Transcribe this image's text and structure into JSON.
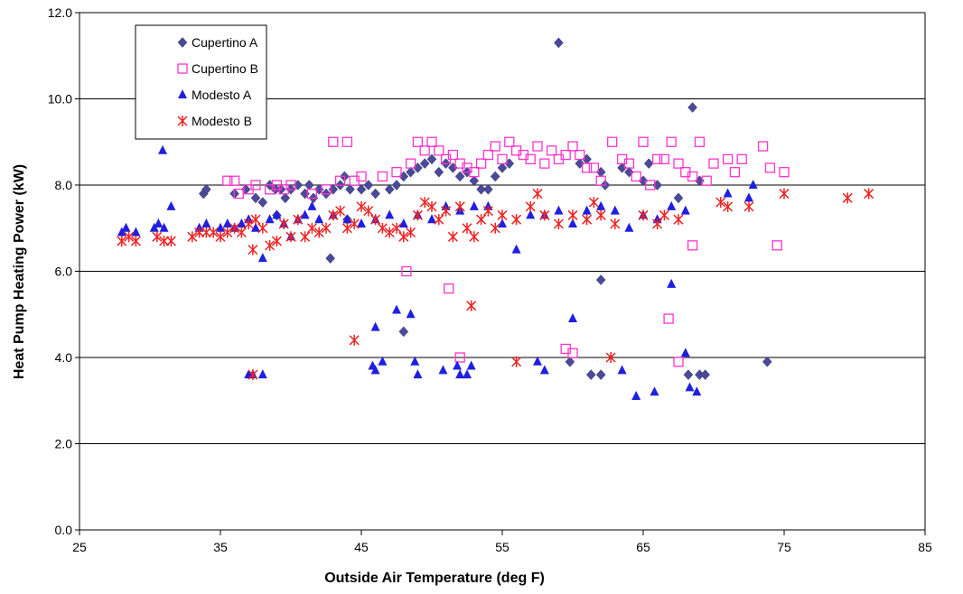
{
  "chart_data": {
    "type": "scatter",
    "xlabel": "Outside Air Temperature (deg F)",
    "ylabel": "Heat Pump Heating Power (kW)",
    "xlim": [
      25,
      85
    ],
    "ylim": [
      0,
      12
    ],
    "x_ticks": [
      "25",
      "35",
      "45",
      "55",
      "65",
      "75",
      "85"
    ],
    "y_ticks": [
      "0.0",
      "2.0",
      "4.0",
      "6.0",
      "8.0",
      "10.0",
      "12.0"
    ],
    "grid": "horizontal",
    "legend_position": "top-left",
    "series": [
      {
        "name": "Cupertino A",
        "marker": "diamond",
        "color": "#4a4a9a",
        "points": [
          [
            33.8,
            7.8
          ],
          [
            34.0,
            7.9
          ],
          [
            36.0,
            7.8
          ],
          [
            36.8,
            7.9
          ],
          [
            37.5,
            7.7
          ],
          [
            38.0,
            7.6
          ],
          [
            38.5,
            8.0
          ],
          [
            38.9,
            7.9
          ],
          [
            39.3,
            7.9
          ],
          [
            39.6,
            7.7
          ],
          [
            40.0,
            7.9
          ],
          [
            40.5,
            8.0
          ],
          [
            41.0,
            7.8
          ],
          [
            41.3,
            8.0
          ],
          [
            41.6,
            7.7
          ],
          [
            42.0,
            7.9
          ],
          [
            42.5,
            7.8
          ],
          [
            43.0,
            7.9
          ],
          [
            43.5,
            8.0
          ],
          [
            43.8,
            8.2
          ],
          [
            44.2,
            7.9
          ],
          [
            45.0,
            7.9
          ],
          [
            45.5,
            8.0
          ],
          [
            46.0,
            7.8
          ],
          [
            47.0,
            7.9
          ],
          [
            47.5,
            8.0
          ],
          [
            48.0,
            8.2
          ],
          [
            48.5,
            8.3
          ],
          [
            49.0,
            8.4
          ],
          [
            49.5,
            8.5
          ],
          [
            50.0,
            8.6
          ],
          [
            50.5,
            8.3
          ],
          [
            51.0,
            8.5
          ],
          [
            51.5,
            8.4
          ],
          [
            52.0,
            8.2
          ],
          [
            52.5,
            8.3
          ],
          [
            53.0,
            8.1
          ],
          [
            53.5,
            7.9
          ],
          [
            54.0,
            7.9
          ],
          [
            54.5,
            8.2
          ],
          [
            55.0,
            8.4
          ],
          [
            55.5,
            8.5
          ],
          [
            59.0,
            11.3
          ],
          [
            60.5,
            8.5
          ],
          [
            61.0,
            8.6
          ],
          [
            62.0,
            8.3
          ],
          [
            62.3,
            8.0
          ],
          [
            63.5,
            8.4
          ],
          [
            64.0,
            8.3
          ],
          [
            65.0,
            8.1
          ],
          [
            65.4,
            8.5
          ],
          [
            66.0,
            8.0
          ],
          [
            67.5,
            7.7
          ],
          [
            68.5,
            9.8
          ],
          [
            69.0,
            8.1
          ],
          [
            48.0,
            4.6
          ],
          [
            42.8,
            6.3
          ],
          [
            62.0,
            5.8
          ],
          [
            59.8,
            3.9
          ],
          [
            61.3,
            3.6
          ],
          [
            62.0,
            3.6
          ],
          [
            68.2,
            3.6
          ],
          [
            69.0,
            3.6
          ],
          [
            69.4,
            3.6
          ],
          [
            73.8,
            3.9
          ],
          [
            39.0,
            7.3
          ],
          [
            44.0,
            7.2
          ]
        ]
      },
      {
        "name": "Cupertino B",
        "marker": "square",
        "color": "#ff33cc",
        "points": [
          [
            35.5,
            8.1
          ],
          [
            36.0,
            8.1
          ],
          [
            36.3,
            7.8
          ],
          [
            37.0,
            7.9
          ],
          [
            37.5,
            8.0
          ],
          [
            38.5,
            7.9
          ],
          [
            39.0,
            8.0
          ],
          [
            39.5,
            7.9
          ],
          [
            40.0,
            8.0
          ],
          [
            41.5,
            7.8
          ],
          [
            42.5,
            7.9
          ],
          [
            43.0,
            9.0
          ],
          [
            44.0,
            9.0
          ],
          [
            43.5,
            8.1
          ],
          [
            44.5,
            8.1
          ],
          [
            45.0,
            8.2
          ],
          [
            46.5,
            8.2
          ],
          [
            47.5,
            8.3
          ],
          [
            48.5,
            8.5
          ],
          [
            49.0,
            9.0
          ],
          [
            49.5,
            8.8
          ],
          [
            50.0,
            9.0
          ],
          [
            50.5,
            8.8
          ],
          [
            51.0,
            8.6
          ],
          [
            51.5,
            8.7
          ],
          [
            52.0,
            8.5
          ],
          [
            52.5,
            8.4
          ],
          [
            53.0,
            8.3
          ],
          [
            53.5,
            8.5
          ],
          [
            54.0,
            8.7
          ],
          [
            54.5,
            8.9
          ],
          [
            55.0,
            8.6
          ],
          [
            55.5,
            9.0
          ],
          [
            56.0,
            8.8
          ],
          [
            56.5,
            8.7
          ],
          [
            57.0,
            8.6
          ],
          [
            57.5,
            8.9
          ],
          [
            58.0,
            8.5
          ],
          [
            58.5,
            8.8
          ],
          [
            59.0,
            8.6
          ],
          [
            59.5,
            8.7
          ],
          [
            60.0,
            8.9
          ],
          [
            60.5,
            8.7
          ],
          [
            61.0,
            8.4
          ],
          [
            61.5,
            8.4
          ],
          [
            62.0,
            8.1
          ],
          [
            62.8,
            9.0
          ],
          [
            63.5,
            8.6
          ],
          [
            64.0,
            8.5
          ],
          [
            64.5,
            8.2
          ],
          [
            65.0,
            9.0
          ],
          [
            65.5,
            8.0
          ],
          [
            66.0,
            8.6
          ],
          [
            66.5,
            8.6
          ],
          [
            67.0,
            9.0
          ],
          [
            67.5,
            8.5
          ],
          [
            68.0,
            8.3
          ],
          [
            68.5,
            8.2
          ],
          [
            69.0,
            9.0
          ],
          [
            69.5,
            8.1
          ],
          [
            70.0,
            8.5
          ],
          [
            71.0,
            8.6
          ],
          [
            71.5,
            8.3
          ],
          [
            72.0,
            8.6
          ],
          [
            73.5,
            8.9
          ],
          [
            74.0,
            8.4
          ],
          [
            75.0,
            8.3
          ],
          [
            48.2,
            6.0
          ],
          [
            51.2,
            5.6
          ],
          [
            52.0,
            4.0
          ],
          [
            59.5,
            4.2
          ],
          [
            60.0,
            4.1
          ],
          [
            66.8,
            4.9
          ],
          [
            67.5,
            3.9
          ],
          [
            68.5,
            6.6
          ],
          [
            74.5,
            6.6
          ]
        ]
      },
      {
        "name": "Modesto A",
        "marker": "triangle",
        "color": "#1f1fe0",
        "points": [
          [
            28.0,
            6.9
          ],
          [
            28.3,
            7.0
          ],
          [
            29.0,
            6.9
          ],
          [
            30.3,
            7.0
          ],
          [
            30.6,
            7.1
          ],
          [
            31.0,
            7.0
          ],
          [
            30.9,
            8.8
          ],
          [
            31.5,
            7.5
          ],
          [
            33.5,
            7.0
          ],
          [
            34.0,
            7.1
          ],
          [
            35.0,
            7.0
          ],
          [
            35.5,
            7.1
          ],
          [
            36.0,
            7.0
          ],
          [
            36.5,
            7.1
          ],
          [
            37.0,
            7.2
          ],
          [
            37.5,
            7.0
          ],
          [
            38.0,
            6.3
          ],
          [
            38.5,
            7.2
          ],
          [
            39.0,
            7.3
          ],
          [
            39.5,
            7.1
          ],
          [
            40.0,
            6.8
          ],
          [
            40.5,
            7.2
          ],
          [
            41.0,
            7.3
          ],
          [
            41.5,
            7.5
          ],
          [
            42.0,
            7.2
          ],
          [
            43.0,
            7.3
          ],
          [
            44.0,
            7.2
          ],
          [
            45.0,
            7.1
          ],
          [
            46.0,
            7.2
          ],
          [
            47.0,
            7.3
          ],
          [
            48.0,
            7.1
          ],
          [
            49.0,
            7.3
          ],
          [
            50.0,
            7.2
          ],
          [
            51.0,
            7.5
          ],
          [
            52.0,
            7.4
          ],
          [
            53.0,
            7.5
          ],
          [
            54.0,
            7.5
          ],
          [
            55.0,
            7.1
          ],
          [
            56.0,
            6.5
          ],
          [
            57.0,
            7.3
          ],
          [
            58.0,
            7.3
          ],
          [
            59.0,
            7.4
          ],
          [
            60.0,
            7.1
          ],
          [
            61.0,
            7.4
          ],
          [
            62.0,
            7.5
          ],
          [
            63.0,
            7.4
          ],
          [
            64.0,
            7.0
          ],
          [
            65.0,
            7.3
          ],
          [
            66.0,
            7.2
          ],
          [
            67.0,
            7.5
          ],
          [
            68.0,
            7.4
          ],
          [
            71.0,
            7.8
          ],
          [
            72.5,
            7.7
          ],
          [
            72.8,
            8.0
          ],
          [
            37.0,
            3.6
          ],
          [
            37.3,
            3.6
          ],
          [
            38.0,
            3.6
          ],
          [
            45.8,
            3.8
          ],
          [
            46.0,
            3.7
          ],
          [
            46.5,
            3.9
          ],
          [
            48.8,
            3.9
          ],
          [
            49.0,
            3.6
          ],
          [
            50.8,
            3.7
          ],
          [
            51.8,
            3.8
          ],
          [
            52.0,
            3.6
          ],
          [
            52.5,
            3.6
          ],
          [
            52.8,
            3.8
          ],
          [
            46.0,
            4.7
          ],
          [
            47.5,
            5.1
          ],
          [
            48.5,
            5.0
          ],
          [
            57.5,
            3.9
          ],
          [
            58.0,
            3.7
          ],
          [
            60.0,
            4.9
          ],
          [
            63.5,
            3.7
          ],
          [
            64.5,
            3.1
          ],
          [
            65.8,
            3.2
          ],
          [
            67.0,
            5.7
          ],
          [
            68.0,
            4.1
          ],
          [
            68.3,
            3.3
          ],
          [
            68.8,
            3.2
          ]
        ]
      },
      {
        "name": "Modesto B",
        "marker": "asterisk",
        "color": "#ee2222",
        "points": [
          [
            28.0,
            6.7
          ],
          [
            28.5,
            6.8
          ],
          [
            29.0,
            6.7
          ],
          [
            30.5,
            6.8
          ],
          [
            31.0,
            6.7
          ],
          [
            31.5,
            6.7
          ],
          [
            33.0,
            6.8
          ],
          [
            33.5,
            6.9
          ],
          [
            34.0,
            6.9
          ],
          [
            34.5,
            6.9
          ],
          [
            35.0,
            6.8
          ],
          [
            35.5,
            6.9
          ],
          [
            36.0,
            7.0
          ],
          [
            36.5,
            6.9
          ],
          [
            37.0,
            7.1
          ],
          [
            37.3,
            6.5
          ],
          [
            37.5,
            7.2
          ],
          [
            38.0,
            7.0
          ],
          [
            38.5,
            6.6
          ],
          [
            39.0,
            6.7
          ],
          [
            39.5,
            7.1
          ],
          [
            40.0,
            6.8
          ],
          [
            40.5,
            7.2
          ],
          [
            41.0,
            6.8
          ],
          [
            41.5,
            7.0
          ],
          [
            42.0,
            6.9
          ],
          [
            42.5,
            7.0
          ],
          [
            43.0,
            7.3
          ],
          [
            43.5,
            7.4
          ],
          [
            44.0,
            7.0
          ],
          [
            44.5,
            7.1
          ],
          [
            45.0,
            7.5
          ],
          [
            45.5,
            7.4
          ],
          [
            46.0,
            7.2
          ],
          [
            46.5,
            7.0
          ],
          [
            47.0,
            6.9
          ],
          [
            47.5,
            7.0
          ],
          [
            48.0,
            6.8
          ],
          [
            48.5,
            6.9
          ],
          [
            49.0,
            7.3
          ],
          [
            49.5,
            7.6
          ],
          [
            50.0,
            7.5
          ],
          [
            50.5,
            7.2
          ],
          [
            51.0,
            7.4
          ],
          [
            51.5,
            6.8
          ],
          [
            52.0,
            7.5
          ],
          [
            52.5,
            7.0
          ],
          [
            53.0,
            6.8
          ],
          [
            53.5,
            7.2
          ],
          [
            54.0,
            7.4
          ],
          [
            54.5,
            7.0
          ],
          [
            55.0,
            7.3
          ],
          [
            56.0,
            7.2
          ],
          [
            57.0,
            7.5
          ],
          [
            57.5,
            7.8
          ],
          [
            58.0,
            7.3
          ],
          [
            59.0,
            7.1
          ],
          [
            60.0,
            7.3
          ],
          [
            61.0,
            7.2
          ],
          [
            61.5,
            7.6
          ],
          [
            62.0,
            7.3
          ],
          [
            63.0,
            7.1
          ],
          [
            65.0,
            7.3
          ],
          [
            66.0,
            7.1
          ],
          [
            66.5,
            7.3
          ],
          [
            67.5,
            7.2
          ],
          [
            70.5,
            7.6
          ],
          [
            71.0,
            7.5
          ],
          [
            72.5,
            7.5
          ],
          [
            75.0,
            7.8
          ],
          [
            79.5,
            7.7
          ],
          [
            81.0,
            7.8
          ],
          [
            37.3,
            3.6
          ],
          [
            44.5,
            4.4
          ],
          [
            52.8,
            5.2
          ],
          [
            56.0,
            3.9
          ],
          [
            62.7,
            4.0
          ]
        ]
      }
    ]
  }
}
